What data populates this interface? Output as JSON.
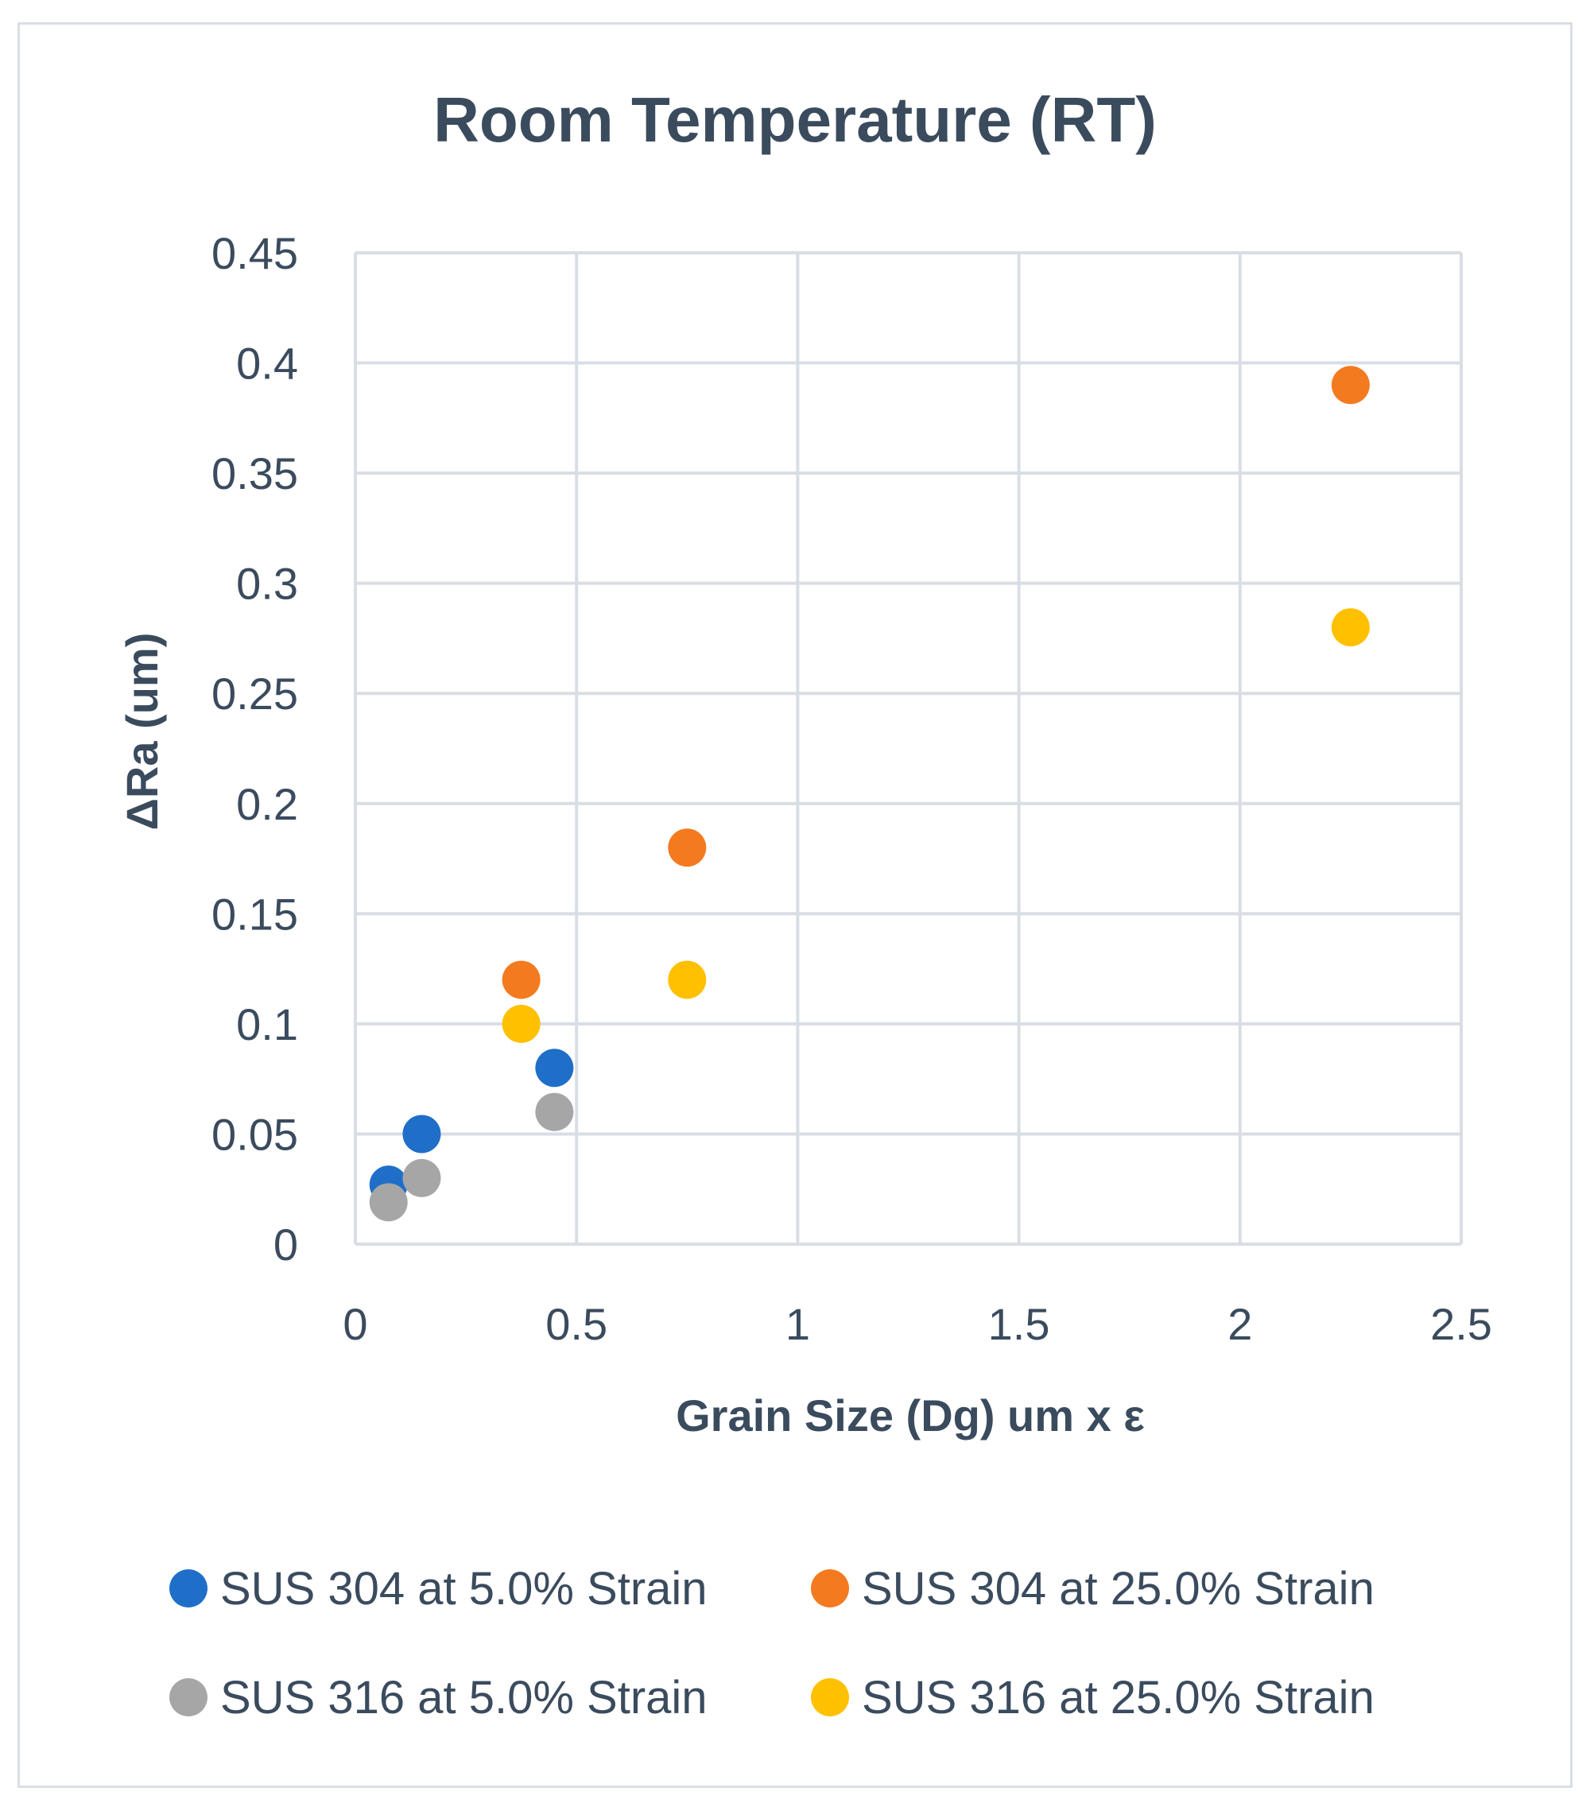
{
  "chart_data": {
    "type": "scatter",
    "title": "Room Temperature (RT)",
    "xlabel": "Grain Size (Dg) um x ε",
    "ylabel": "ΔRa (um)",
    "xlim": [
      0,
      2.5
    ],
    "ylim": [
      0,
      0.45
    ],
    "x_ticks": [
      0,
      0.5,
      1,
      1.5,
      2,
      2.5
    ],
    "x_tick_labels": [
      "0",
      "0.5",
      "1",
      "1.5",
      "2",
      "2.5"
    ],
    "y_ticks": [
      0,
      0.05,
      0.1,
      0.15,
      0.2,
      0.25,
      0.3,
      0.35,
      0.4,
      0.45
    ],
    "y_tick_labels": [
      "0",
      "0.05",
      "0.1",
      "0.15",
      "0.2",
      "0.25",
      "0.3",
      "0.35",
      "0.4",
      "0.45"
    ],
    "grid": true,
    "legend_position": "bottom",
    "series": [
      {
        "name": "SUS 304 at 5.0% Strain",
        "color": "#1f6fc9",
        "points": [
          [
            0.075,
            0.027
          ],
          [
            0.15,
            0.05
          ],
          [
            0.45,
            0.08
          ]
        ]
      },
      {
        "name": "SUS 304 at 25.0% Strain",
        "color": "#f47a20",
        "points": [
          [
            0.375,
            0.12
          ],
          [
            0.75,
            0.18
          ],
          [
            2.25,
            0.39
          ]
        ]
      },
      {
        "name": "SUS 316 at 5.0% Strain",
        "color": "#a6a6a6",
        "points": [
          [
            0.075,
            0.019
          ],
          [
            0.15,
            0.03
          ],
          [
            0.45,
            0.06
          ]
        ]
      },
      {
        "name": "SUS 316 at 25.0% Strain",
        "color": "#ffc000",
        "points": [
          [
            0.375,
            0.1
          ],
          [
            0.75,
            0.12
          ],
          [
            2.25,
            0.28
          ]
        ]
      }
    ]
  }
}
